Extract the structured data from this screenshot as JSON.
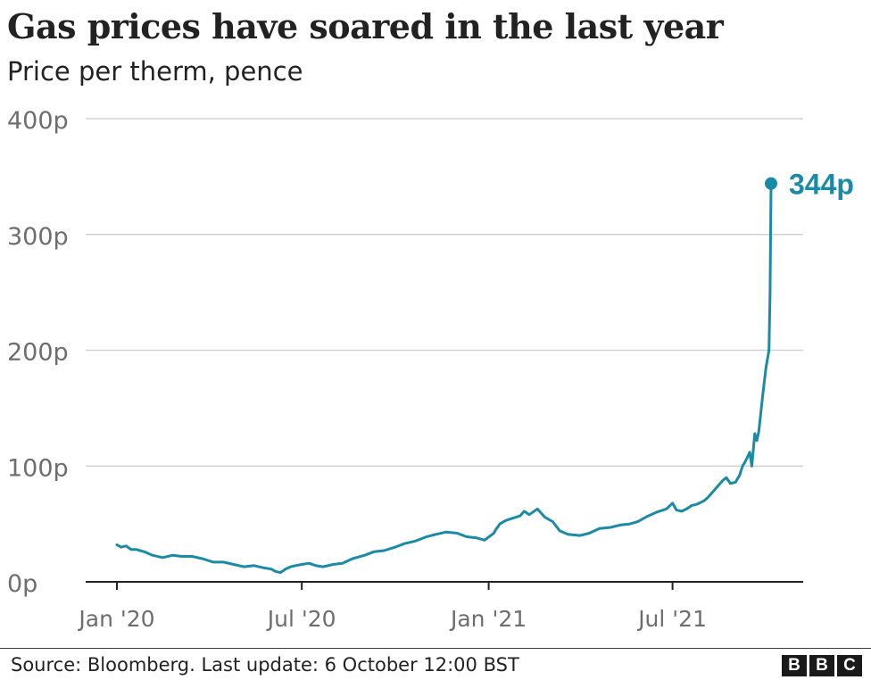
{
  "header": {
    "title": "Gas prices have soared in the last year",
    "subtitle": "Price per therm, pence"
  },
  "footer": {
    "source": "Source: Bloomberg. Last update: 6 October 12:00 BST",
    "logo_letters": [
      "B",
      "B",
      "C"
    ]
  },
  "colors": {
    "series": "#1b8aa6",
    "grid": "#d2d2d2",
    "axis": "#222222",
    "tick_text": "#6e6e6e"
  },
  "chart_data": {
    "type": "line",
    "title": "Gas prices have soared in the last year",
    "subtitle": "Price per therm, pence",
    "xlabel": "",
    "ylabel": "",
    "xlim": [
      "2020-01-01",
      "2021-10-06"
    ],
    "ylim": [
      0,
      400
    ],
    "grid": true,
    "legend": "none",
    "x_ticks": [
      {
        "date": "2020-01-01",
        "label": "Jan '20"
      },
      {
        "date": "2020-07-01",
        "label": "Jul '20"
      },
      {
        "date": "2021-01-01",
        "label": "Jan '21"
      },
      {
        "date": "2021-07-01",
        "label": "Jul '21"
      }
    ],
    "y_ticks": [
      {
        "value": 0,
        "label": "0p"
      },
      {
        "value": 100,
        "label": "100p"
      },
      {
        "value": 200,
        "label": "200p"
      },
      {
        "value": 300,
        "label": "300p"
      },
      {
        "value": 400,
        "label": "400p"
      }
    ],
    "series": [
      {
        "x": [
          "2020-01-01",
          "2020-01-05",
          "2020-01-10",
          "2020-01-15",
          "2020-01-20",
          "2020-01-28",
          "2020-02-05",
          "2020-02-15",
          "2020-02-25",
          "2020-03-05",
          "2020-03-15",
          "2020-03-25",
          "2020-04-05",
          "2020-04-15",
          "2020-04-25",
          "2020-05-05",
          "2020-05-15",
          "2020-05-25",
          "2020-06-01",
          "2020-06-05",
          "2020-06-10",
          "2020-06-15",
          "2020-06-20",
          "2020-06-25",
          "2020-07-01",
          "2020-07-08",
          "2020-07-15",
          "2020-07-22",
          "2020-08-01",
          "2020-08-10",
          "2020-08-20",
          "2020-09-01",
          "2020-09-10",
          "2020-09-20",
          "2020-10-01",
          "2020-10-10",
          "2020-10-20",
          "2020-11-01",
          "2020-11-10",
          "2020-11-20",
          "2020-12-01",
          "2020-12-10",
          "2020-12-20",
          "2020-12-28",
          "2021-01-03",
          "2021-01-06",
          "2021-01-08",
          "2021-01-12",
          "2021-01-18",
          "2021-01-25",
          "2021-02-01",
          "2021-02-05",
          "2021-02-10",
          "2021-02-18",
          "2021-02-25",
          "2021-03-05",
          "2021-03-12",
          "2021-03-20",
          "2021-04-01",
          "2021-04-10",
          "2021-04-20",
          "2021-05-01",
          "2021-05-10",
          "2021-05-20",
          "2021-05-28",
          "2021-06-05",
          "2021-06-15",
          "2021-06-25",
          "2021-07-01",
          "2021-07-05",
          "2021-07-10",
          "2021-07-15",
          "2021-07-20",
          "2021-07-25",
          "2021-08-01",
          "2021-08-05",
          "2021-08-10",
          "2021-08-15",
          "2021-08-20",
          "2021-08-23",
          "2021-08-27",
          "2021-09-01",
          "2021-09-05",
          "2021-09-08",
          "2021-09-10",
          "2021-09-13",
          "2021-09-15",
          "2021-09-17",
          "2021-09-20",
          "2021-09-22",
          "2021-09-24",
          "2021-09-27",
          "2021-09-29",
          "2021-10-01",
          "2021-10-04",
          "2021-10-05",
          "2021-10-06"
        ],
        "values": [
          32,
          30,
          31,
          28,
          28,
          26,
          23,
          21,
          23,
          22,
          22,
          20,
          17,
          17,
          15,
          13,
          14,
          12,
          11,
          9,
          8,
          11,
          13,
          14,
          15,
          16,
          14,
          13,
          15,
          16,
          20,
          23,
          26,
          27,
          30,
          33,
          35,
          39,
          41,
          43,
          42,
          39,
          38,
          36,
          40,
          42,
          45,
          50,
          53,
          55,
          57,
          61,
          58,
          63,
          56,
          52,
          44,
          41,
          40,
          42,
          46,
          47,
          49,
          50,
          52,
          56,
          60,
          63,
          68,
          62,
          61,
          63,
          66,
          67,
          70,
          73,
          78,
          83,
          88,
          90,
          85,
          86,
          92,
          100,
          103,
          108,
          112,
          100,
          128,
          122,
          130,
          155,
          170,
          185,
          200,
          250,
          344
        ]
      }
    ],
    "annotations": [
      {
        "date": "2021-10-06",
        "value": 344,
        "label": "344p"
      }
    ]
  }
}
